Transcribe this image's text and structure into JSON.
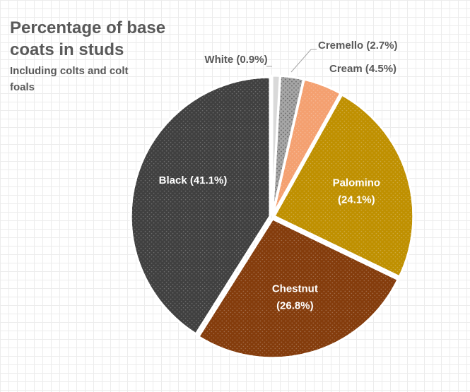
{
  "chart_data": {
    "type": "pie",
    "title": "Percentage of base coats in studs",
    "subtitle": "Including colts and colt foals",
    "slices": [
      {
        "name": "White",
        "value": 0.9,
        "label": "White (0.9%)",
        "color": "#d9d9d9",
        "pattern": "none",
        "label_style": "outside"
      },
      {
        "name": "Cremello",
        "value": 2.7,
        "label": "Cremello (2.7%)",
        "color": "#a6a6a6",
        "pattern": "dots-dark",
        "label_style": "outside"
      },
      {
        "name": "Cream",
        "value": 4.5,
        "label": "Cream (4.5%)",
        "color": "#f4a070",
        "pattern": "dots-light",
        "label_style": "outside"
      },
      {
        "name": "Palomino",
        "value": 24.1,
        "label": "Palomino (24.1%)",
        "color": "#bf9000",
        "pattern": "dots-light",
        "label_style": "inside"
      },
      {
        "name": "Chestnut",
        "value": 26.8,
        "label": "Chestnut (26.8%)",
        "color": "#843c0c",
        "pattern": "dots-light",
        "label_style": "inside"
      },
      {
        "name": "Black",
        "value": 41.1,
        "label": "Black (41.1%)",
        "color": "#404040",
        "pattern": "dots-light",
        "label_style": "inside"
      }
    ],
    "start_angle_deg": 0,
    "direction": "clockwise",
    "legend": "none"
  }
}
